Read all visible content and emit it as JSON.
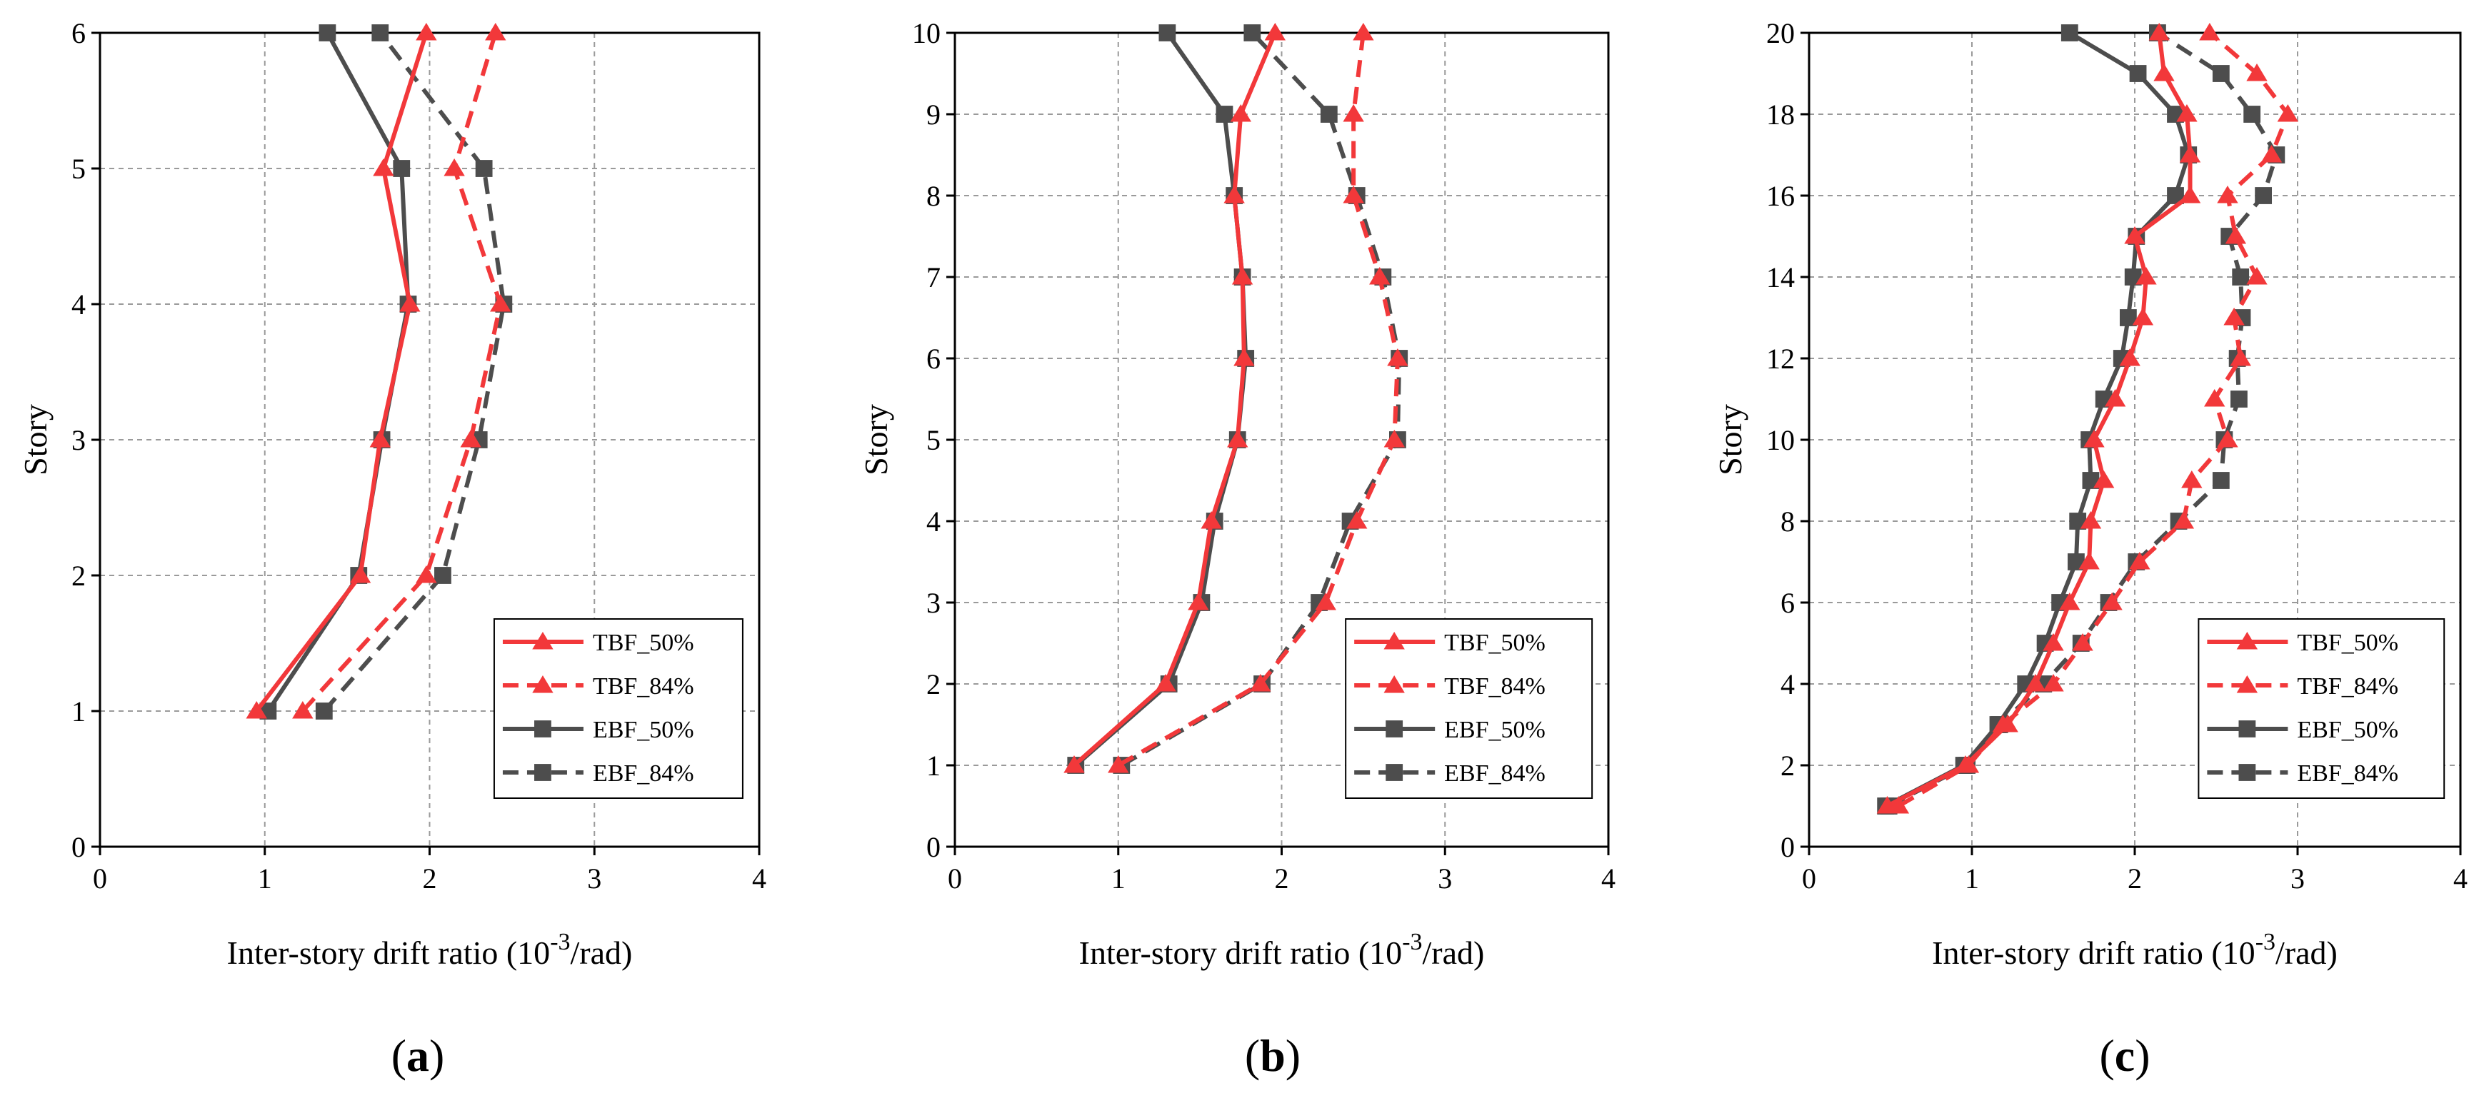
{
  "figure": {
    "panel_labels": [
      "(a)",
      "(b)",
      "(c)"
    ],
    "colors": {
      "tbf": "#f2383a",
      "ebf": "#4d4d4d",
      "grid": "#9a9a9a",
      "axis": "#000000"
    }
  },
  "chart_data": [
    {
      "type": "line",
      "panel": "a",
      "xlabel": "Inter-story drift ratio",
      "xlabel_unit_pre": "(10",
      "xlabel_unit_exp": "-3",
      "xlabel_unit_post": "/rad)",
      "ylabel": "Story",
      "xlim": [
        0,
        4
      ],
      "ylim": [
        0,
        6
      ],
      "xticks": [
        "0",
        "1",
        "2",
        "3",
        "4"
      ],
      "yticks": [
        "0",
        "1",
        "2",
        "3",
        "4",
        "5",
        "6"
      ],
      "legend_position": "bottom-right",
      "series": [
        {
          "name": "TBF_50%",
          "color": "#f2383a",
          "dashed": false,
          "marker": "triangle",
          "x": [
            0.95,
            1.58,
            1.7,
            1.88,
            1.72,
            1.98
          ],
          "y": [
            1,
            2,
            3,
            4,
            5,
            6
          ]
        },
        {
          "name": "TBF_84%",
          "color": "#f2383a",
          "dashed": true,
          "marker": "triangle",
          "x": [
            1.23,
            1.98,
            2.25,
            2.43,
            2.15,
            2.4
          ],
          "y": [
            1,
            2,
            3,
            4,
            5,
            6
          ]
        },
        {
          "name": "EBF_50%",
          "color": "#4d4d4d",
          "dashed": false,
          "marker": "square",
          "x": [
            1.02,
            1.57,
            1.71,
            1.87,
            1.83,
            1.38
          ],
          "y": [
            1,
            2,
            3,
            4,
            5,
            6
          ]
        },
        {
          "name": "EBF_84%",
          "color": "#4d4d4d",
          "dashed": true,
          "marker": "square",
          "x": [
            1.36,
            2.08,
            2.3,
            2.45,
            2.33,
            1.7
          ],
          "y": [
            1,
            2,
            3,
            4,
            5,
            6
          ]
        }
      ]
    },
    {
      "type": "line",
      "panel": "b",
      "xlabel": "Inter-story drift ratio",
      "xlabel_unit_pre": "(10",
      "xlabel_unit_exp": "-3",
      "xlabel_unit_post": "/rad)",
      "ylabel": "Story",
      "xlim": [
        0,
        4
      ],
      "ylim": [
        0,
        10
      ],
      "xticks": [
        "0",
        "1",
        "2",
        "3",
        "4"
      ],
      "yticks": [
        "0",
        "1",
        "2",
        "3",
        "4",
        "5",
        "6",
        "7",
        "8",
        "9",
        "10"
      ],
      "legend_position": "bottom-right",
      "series": [
        {
          "name": "TBF_50%",
          "color": "#f2383a",
          "dashed": false,
          "marker": "triangle",
          "x": [
            0.73,
            1.29,
            1.49,
            1.57,
            1.73,
            1.77,
            1.76,
            1.71,
            1.75,
            1.96
          ],
          "y": [
            1,
            2,
            3,
            4,
            5,
            6,
            7,
            8,
            9,
            10
          ]
        },
        {
          "name": "TBF_84%",
          "color": "#f2383a",
          "dashed": true,
          "marker": "triangle",
          "x": [
            1.0,
            1.87,
            2.27,
            2.46,
            2.69,
            2.71,
            2.6,
            2.44,
            2.44,
            2.5
          ],
          "y": [
            1,
            2,
            3,
            4,
            5,
            6,
            7,
            8,
            9,
            10
          ]
        },
        {
          "name": "EBF_50%",
          "color": "#4d4d4d",
          "dashed": false,
          "marker": "square",
          "x": [
            0.74,
            1.31,
            1.51,
            1.59,
            1.73,
            1.78,
            1.76,
            1.71,
            1.65,
            1.3
          ],
          "y": [
            1,
            2,
            3,
            4,
            5,
            6,
            7,
            8,
            9,
            10
          ]
        },
        {
          "name": "EBF_84%",
          "color": "#4d4d4d",
          "dashed": true,
          "marker": "square",
          "x": [
            1.02,
            1.88,
            2.23,
            2.42,
            2.71,
            2.72,
            2.62,
            2.46,
            2.29,
            1.82
          ],
          "y": [
            1,
            2,
            3,
            4,
            5,
            6,
            7,
            8,
            9,
            10
          ]
        }
      ]
    },
    {
      "type": "line",
      "panel": "c",
      "xlabel": "Inter-story drift ratio",
      "xlabel_unit_pre": "(10",
      "xlabel_unit_exp": "-3",
      "xlabel_unit_post": "/rad)",
      "ylabel": "Story",
      "xlim": [
        0,
        4
      ],
      "ylim": [
        0,
        20
      ],
      "xticks": [
        "0",
        "1",
        "2",
        "3",
        "4"
      ],
      "yticks": [
        "0",
        "2",
        "4",
        "6",
        "8",
        "10",
        "12",
        "14",
        "16",
        "18",
        "20"
      ],
      "legend_position": "bottom-right",
      "series": [
        {
          "name": "TBF_50%",
          "color": "#f2383a",
          "dashed": false,
          "marker": "triangle",
          "x": [
            0.48,
            0.96,
            1.22,
            1.39,
            1.5,
            1.6,
            1.72,
            1.73,
            1.81,
            1.75,
            1.88,
            1.97,
            2.05,
            2.07,
            2.0,
            2.34,
            2.34,
            2.32,
            2.18,
            2.15
          ],
          "y": [
            1,
            2,
            3,
            4,
            5,
            6,
            7,
            8,
            9,
            10,
            11,
            12,
            13,
            14,
            15,
            16,
            17,
            18,
            19,
            20
          ]
        },
        {
          "name": "TBF_84%",
          "color": "#f2383a",
          "dashed": true,
          "marker": "triangle",
          "x": [
            0.55,
            0.98,
            1.19,
            1.5,
            1.68,
            1.86,
            2.03,
            2.3,
            2.35,
            2.57,
            2.49,
            2.65,
            2.61,
            2.75,
            2.62,
            2.57,
            2.84,
            2.94,
            2.75,
            2.46
          ],
          "y": [
            1,
            2,
            3,
            4,
            5,
            6,
            7,
            8,
            9,
            10,
            11,
            12,
            13,
            14,
            15,
            16,
            17,
            18,
            19,
            20
          ]
        },
        {
          "name": "EBF_50%",
          "color": "#4d4d4d",
          "dashed": false,
          "marker": "square",
          "x": [
            0.47,
            0.95,
            1.16,
            1.33,
            1.45,
            1.54,
            1.64,
            1.65,
            1.73,
            1.72,
            1.81,
            1.92,
            1.96,
            1.99,
            2.01,
            2.25,
            2.33,
            2.25,
            2.02,
            1.6
          ],
          "y": [
            1,
            2,
            3,
            4,
            5,
            6,
            7,
            8,
            9,
            10,
            11,
            12,
            13,
            14,
            15,
            16,
            17,
            18,
            19,
            20
          ]
        },
        {
          "name": "EBF_84%",
          "color": "#4d4d4d",
          "dashed": true,
          "marker": "square",
          "x": [
            0.49,
            0.97,
            1.17,
            1.44,
            1.67,
            1.84,
            2.01,
            2.27,
            2.53,
            2.55,
            2.64,
            2.63,
            2.66,
            2.65,
            2.58,
            2.79,
            2.87,
            2.72,
            2.53,
            2.14
          ],
          "y": [
            1,
            2,
            3,
            4,
            5,
            6,
            7,
            8,
            9,
            10,
            11,
            12,
            13,
            14,
            15,
            16,
            17,
            18,
            19,
            20
          ]
        }
      ]
    }
  ]
}
